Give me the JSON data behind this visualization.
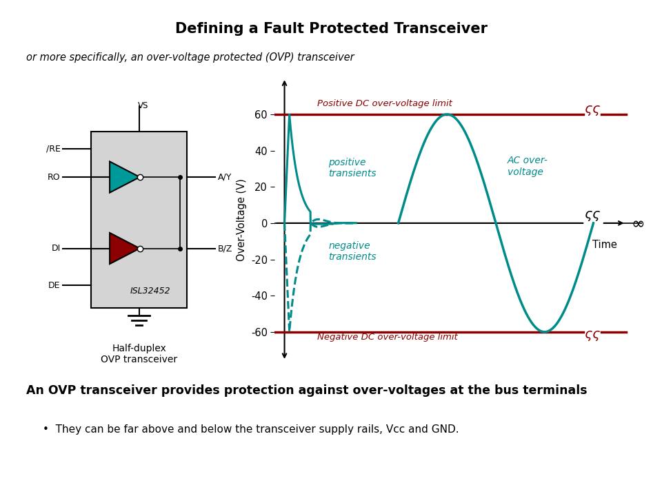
{
  "title": "Defining a Fault Protected Transceiver",
  "subtitle": "or more specifically, an over-voltage protected (OVP) transceiver",
  "bottom_bold": "An OVP transceiver provides protection against over-voltages at the bus terminals",
  "bottom_bullet": "They can be far above and below the transceiver supply rails, Vcc and GND.",
  "graph_ylabel": "Over-Voltage (V)",
  "graph_xlabel": "Time",
  "yticks": [
    -60,
    -40,
    -20,
    0,
    20,
    40,
    60
  ],
  "pos_limit_label": "Positive DC over-voltage limit",
  "neg_limit_label": "Negative DC over-voltage limit",
  "pos_transient_label": "positive\ntransients",
  "neg_transient_label": "negative\ntransients",
  "ac_label": "AC over-\nvoltage",
  "teal_color": "#008B8B",
  "dark_red_color": "#8B0000",
  "bg_color": "#ffffff",
  "chip_label": "ISL32452",
  "chip_caption1": "Half-duplex",
  "chip_caption2": "OVP transceiver",
  "vs_label": "VS"
}
